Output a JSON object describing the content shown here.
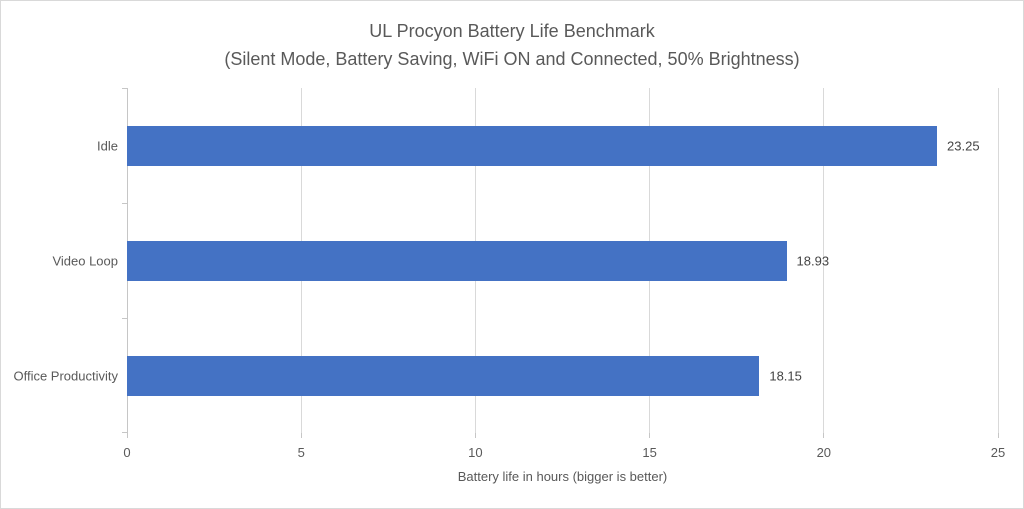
{
  "chart_data": {
    "type": "bar",
    "orientation": "horizontal",
    "title": "UL Procyon Battery Life Benchmark",
    "subtitle": "(Silent Mode, Battery Saving, WiFi ON and Connected, 50% Brightness)",
    "categories": [
      "Idle",
      "Video Loop",
      "Office Productivity"
    ],
    "values": [
      23.25,
      18.93,
      18.15
    ],
    "value_labels": [
      "23.25",
      "18.93",
      "18.15"
    ],
    "xlabel": "Battery life in hours (bigger is better)",
    "xlim": [
      0,
      25
    ],
    "xticks": [
      "0",
      "5",
      "10",
      "15",
      "20",
      "25"
    ],
    "grid": true,
    "legend": false,
    "colors": {
      "bar": "#4472C4",
      "text": "#595959",
      "value_text": "#444444",
      "gridline": "#D9D9D9",
      "axis": "#C6C6C6",
      "background": "#FFFFFF",
      "border": "#D9D9D9"
    }
  }
}
